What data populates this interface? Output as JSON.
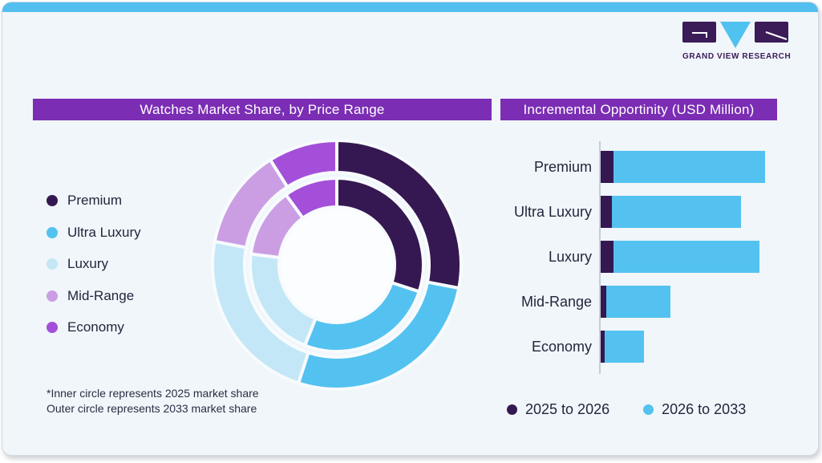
{
  "header": {
    "logo": {
      "wordmark": "GRAND VIEW RESEARCH",
      "purple": "#3b1b58",
      "blue": "#4fc2ef"
    },
    "top_strip_color": "#53bfee"
  },
  "left_panel": {
    "title": "Watches Market Share, by Price Range",
    "title_bg": "#7b2db4",
    "legend": [
      {
        "label": "Premium",
        "color": "#351851"
      },
      {
        "label": "Ultra Luxury",
        "color": "#54c2f0"
      },
      {
        "label": "Luxury",
        "color": "#c3e7f7"
      },
      {
        "label": "Mid-Range",
        "color": "#cb9ee4"
      },
      {
        "label": "Economy",
        "color": "#a44fd9"
      }
    ],
    "footnote_line1": "*Inner circle represents 2025 market share",
    "footnote_line2": "Outer circle represents 2033 market share"
  },
  "right_panel": {
    "title": "Incremental Opportinity (USD Million)",
    "title_bg": "#7b2db4",
    "legend": [
      {
        "label": "2025 to 2026",
        "color": "#351851"
      },
      {
        "label": "2026 to 2033",
        "color": "#54c2f0"
      }
    ]
  },
  "chart_data": [
    {
      "type": "pie",
      "variant": "double-ring donut",
      "title": "Watches Market Share, by Price Range",
      "categories": [
        "Premium",
        "Ultra Luxury",
        "Luxury",
        "Mid-Range",
        "Economy"
      ],
      "colors": [
        "#351851",
        "#54c2f0",
        "#c3e7f7",
        "#cb9ee4",
        "#a44fd9"
      ],
      "series": [
        {
          "name": "2025 market share (inner circle)",
          "values": [
            30,
            26,
            21,
            13,
            10
          ]
        },
        {
          "name": "2033 market share (outer circle)",
          "values": [
            28,
            27,
            23,
            13,
            9
          ]
        }
      ],
      "units": "percent, estimated from arc angles (no numeric labels shown)",
      "start_angle": "12 o'clock, clockwise",
      "legend_position": "left"
    },
    {
      "type": "bar",
      "orientation": "horizontal",
      "stacked": true,
      "title": "Incremental Opportinity (USD Million)",
      "categories": [
        "Premium",
        "Ultra Luxury",
        "Luxury",
        "Mid-Range",
        "Economy"
      ],
      "series": [
        {
          "name": "2025 to 2026",
          "color": "#351851",
          "values": [
            7.8,
            6.7,
            7.8,
            3.6,
            2.4
          ]
        },
        {
          "name": "2026 to 2033",
          "color": "#54c2f0",
          "values": [
            92.2,
            78.7,
            88.8,
            38.7,
            24.1
          ]
        }
      ],
      "units": "relative units estimated from bar lengths; largest stacked bar (Premium) = 100; no value axis labels shown",
      "value_axis": "unlabeled",
      "grid": "off",
      "legend_position": "bottom"
    }
  ]
}
